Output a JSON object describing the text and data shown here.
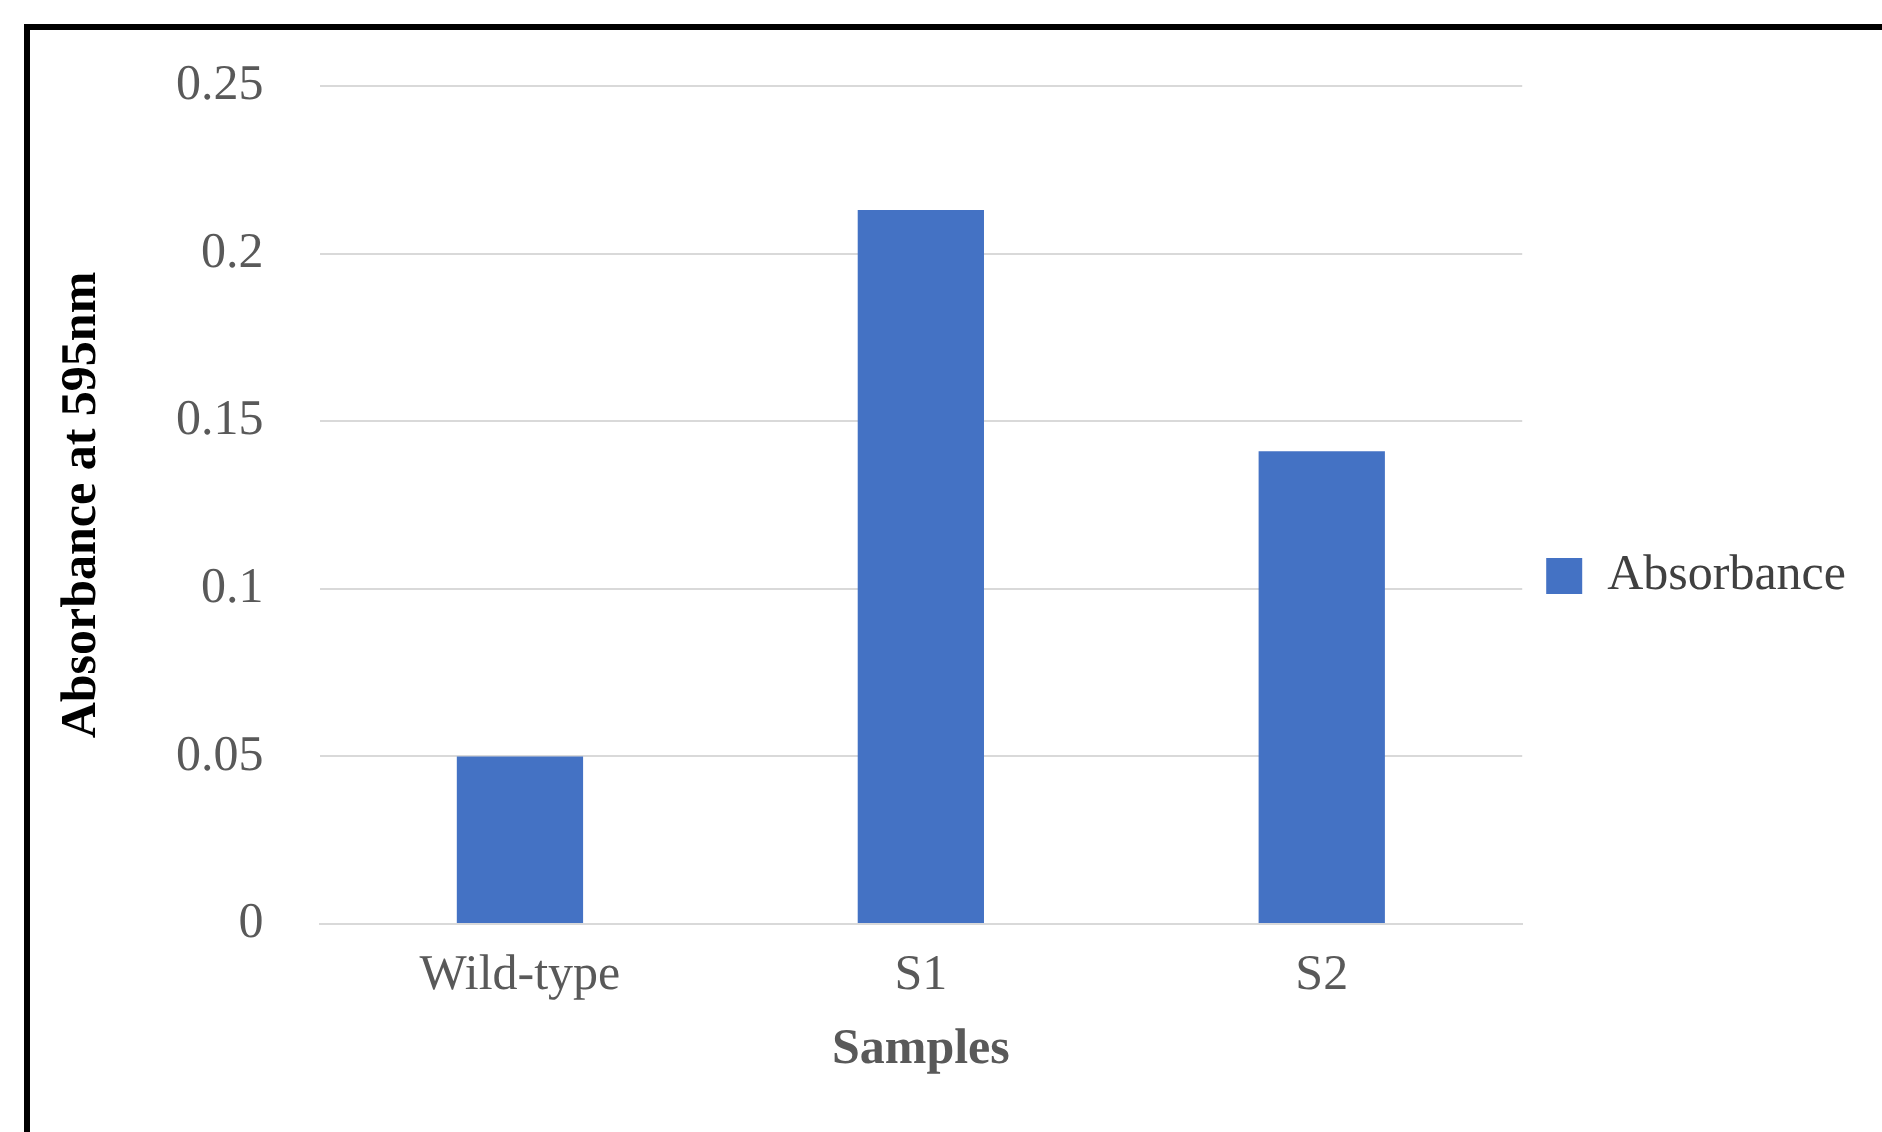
{
  "chart_data": {
    "type": "bar",
    "xlabel": "Samples",
    "ylabel": "Absorbance at 595nm",
    "categories": [
      "Wild-type",
      "S1",
      "S2"
    ],
    "series": [
      {
        "name": "Absorbance",
        "color": "#4472c4",
        "values": [
          0.05,
          0.213,
          0.141
        ]
      }
    ],
    "ylim": [
      0,
      0.25
    ],
    "yticks": [
      0,
      0.05,
      0.1,
      0.15,
      0.2,
      0.25
    ],
    "grid": "y",
    "legend": "right"
  }
}
